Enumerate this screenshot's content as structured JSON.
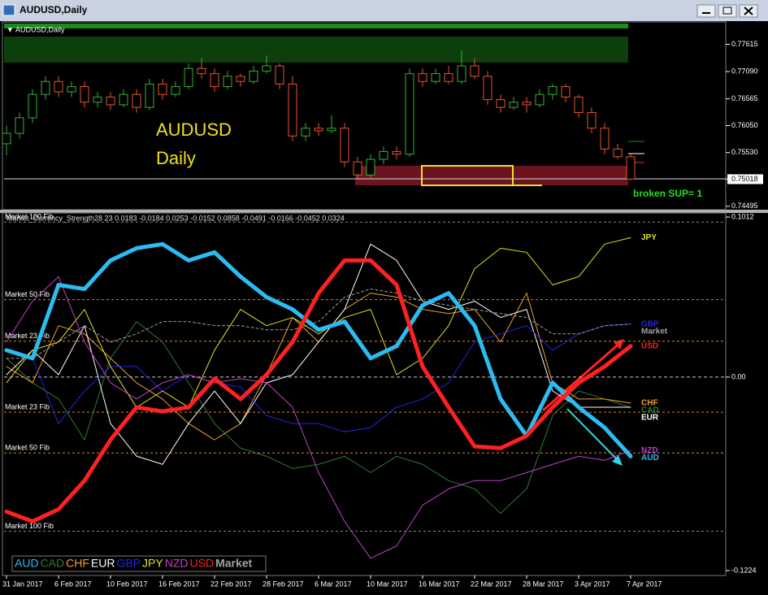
{
  "window": {
    "title": "AUDUSD,Daily"
  },
  "chart_data": [
    {
      "type": "candlestick",
      "title": "AUDUSD,Daily",
      "annotations": [
        "AUDUSD",
        "Daily",
        "broken SUP= 1"
      ],
      "up_color": "#33b233",
      "down_color": "#e8552b",
      "open": [
        0.757,
        0.759,
        0.762,
        0.7665,
        0.769,
        0.767,
        0.768,
        0.765,
        0.766,
        0.7645,
        0.7665,
        0.764,
        0.7685,
        0.7665,
        0.768,
        0.7715,
        0.7705,
        0.768,
        0.77,
        0.769,
        0.771,
        0.772,
        0.7685,
        0.7585,
        0.76,
        0.7595,
        0.76,
        0.7535,
        0.751,
        0.754,
        0.7555,
        0.755,
        0.7705,
        0.769,
        0.7705,
        0.769,
        0.772,
        0.77,
        0.7655,
        0.764,
        0.765,
        0.7645,
        0.7665,
        0.768,
        0.766,
        0.763,
        0.76,
        0.756,
        0.7545
      ],
      "high": [
        0.7605,
        0.763,
        0.7675,
        0.77,
        0.77,
        0.769,
        0.769,
        0.767,
        0.767,
        0.7675,
        0.7675,
        0.7695,
        0.7695,
        0.769,
        0.7725,
        0.7735,
        0.7715,
        0.771,
        0.7705,
        0.772,
        0.774,
        0.7725,
        0.77,
        0.761,
        0.761,
        0.7625,
        0.761,
        0.7545,
        0.755,
        0.7565,
        0.7565,
        0.7715,
        0.7715,
        0.7715,
        0.772,
        0.775,
        0.7735,
        0.771,
        0.7665,
        0.766,
        0.766,
        0.7675,
        0.7685,
        0.7685,
        0.7665,
        0.764,
        0.761,
        0.757,
        0.755
      ],
      "low": [
        0.7548,
        0.758,
        0.761,
        0.7655,
        0.766,
        0.766,
        0.764,
        0.764,
        0.7635,
        0.764,
        0.763,
        0.7635,
        0.7655,
        0.766,
        0.7675,
        0.7695,
        0.767,
        0.7675,
        0.768,
        0.7685,
        0.7705,
        0.7675,
        0.7575,
        0.7575,
        0.7585,
        0.759,
        0.7525,
        0.75,
        0.7505,
        0.753,
        0.754,
        0.7545,
        0.768,
        0.7685,
        0.7685,
        0.7685,
        0.7695,
        0.7645,
        0.763,
        0.7635,
        0.763,
        0.764,
        0.7655,
        0.765,
        0.762,
        0.759,
        0.755,
        0.754,
        0.75
      ],
      "close": [
        0.759,
        0.762,
        0.7665,
        0.769,
        0.767,
        0.768,
        0.765,
        0.766,
        0.7645,
        0.7665,
        0.764,
        0.7685,
        0.7665,
        0.768,
        0.7715,
        0.7705,
        0.768,
        0.77,
        0.769,
        0.771,
        0.772,
        0.7685,
        0.7585,
        0.76,
        0.7595,
        0.76,
        0.7535,
        0.751,
        0.754,
        0.7555,
        0.755,
        0.7705,
        0.769,
        0.7705,
        0.769,
        0.772,
        0.77,
        0.7655,
        0.764,
        0.765,
        0.7645,
        0.7665,
        0.768,
        0.766,
        0.763,
        0.76,
        0.756,
        0.7545,
        0.7502
      ],
      "ylim": [
        0.7443,
        0.7803
      ],
      "yticks": [
        0.77615,
        {
          "value": 0.7709,
          "label": "0.77090"
        },
        0.76565,
        {
          "value": 0.7605,
          "label": "0.76050"
        },
        {
          "value": 0.7553,
          "label": "0.75530"
        },
        0.75018,
        0.74495
      ]
    },
    {
      "type": "line",
      "title": "Market_Currency_Strength28 23 0.0183 -0.0184 0.0253 -0.0152 0.0858 -0.0491 -0.0166 -0.0452 0.0324",
      "categories": [
        "31 Jan 2017",
        null,
        "6 Feb 2017",
        null,
        "10 Feb 2017",
        null,
        "16 Feb 2017",
        null,
        "22 Feb 2017",
        null,
        "28 Feb 2017",
        null,
        "6 Mar 2017",
        null,
        "10 Mar 2017",
        null,
        "16 Mar 2017",
        null,
        "22 Mar 2017",
        null,
        "28 Mar 2017",
        null,
        "3 Apr 2017",
        null,
        "7 Apr 2017"
      ],
      "ylim": [
        -0.1255,
        0.1038
      ],
      "yticks": [
        0.1012,
        {
          "value": 0,
          "label": "0.00"
        },
        -0.1224
      ],
      "levels": [
        {
          "value": 0.098,
          "label": "Market 100 Fib",
          "color": "#888888"
        },
        {
          "value": 0.049,
          "label": "Market 50 Fib",
          "color": "#d98a1c"
        },
        {
          "value": 0.0227,
          "label": "Market 23 Fib",
          "color": "#d98a1c"
        },
        {
          "value": -0.0222,
          "label": "Market 23 Fib",
          "color": "#d98a1c"
        },
        {
          "value": -0.048,
          "label": "Market 50 Fib",
          "color": "#d98a1c"
        },
        {
          "value": -0.0975,
          "label": "Market 100 Fib",
          "color": "#888888"
        }
      ],
      "series": [
        {
          "name": "AUD",
          "color": "#2cbcf2",
          "line_width": 5,
          "values": [
            0.017,
            0.0119,
            0.0583,
            0.0557,
            0.0738,
            0.0815,
            0.0841,
            0.0738,
            0.0789,
            0.0635,
            0.0506,
            0.0428,
            0.0299,
            0.0351,
            0.0119,
            0.0196,
            0.0454,
            0.0531,
            0.0325,
            -0.0139,
            -0.0372,
            -0.0036,
            -0.0191,
            -0.032,
            -0.0501
          ]
        },
        {
          "name": "CAD",
          "color": "#2f7a2f",
          "line_width": 1,
          "values": [
            0.0119,
            -0.0036,
            -0.0139,
            -0.0397,
            0.0119,
            0.0351,
            0.0222,
            -0.0036,
            -0.0294,
            -0.0449,
            -0.0501,
            -0.0578,
            -0.0552,
            -0.0501,
            -0.0604,
            -0.0501,
            -0.0552,
            -0.0655,
            -0.0707,
            -0.0862,
            -0.0707,
            -0.0243,
            -0.0088,
            -0.0139,
            -0.0191
          ]
        },
        {
          "name": "CHF",
          "color": "#f0a030",
          "line_width": 1,
          "values": [
            0.0067,
            -0.0036,
            0.0325,
            0.0273,
            0.0119,
            -0.0036,
            -0.0139,
            -0.0294,
            -0.0397,
            -0.0294,
            0.0015,
            0.0377,
            0.0222,
            0.0428,
            0.0531,
            0.0506,
            0.0428,
            0.0402,
            0.0428,
            0.0222,
            0.0531,
            -0.0036,
            -0.0139,
            -0.0139,
            -0.0165
          ]
        },
        {
          "name": "EUR",
          "color": "#ffffff",
          "line_width": 1,
          "values": [
            0.0015,
            0.017,
            0.0015,
            0.0325,
            -0.0294,
            -0.05,
            -0.0552,
            -0.0294,
            -0.0088,
            -0.0294,
            -0.0036,
            0.0015,
            0.0222,
            0.0428,
            0.0841,
            0.0738,
            0.048,
            0.0428,
            0.048,
            0.0377,
            0.0428,
            -0.0088,
            -0.0191,
            -0.0191,
            -0.0191
          ]
        },
        {
          "name": "GBP",
          "color": "#2424e6",
          "line_width": 1,
          "values": [
            0.017,
            0.0119,
            -0.0294,
            -0.0088,
            0.0067,
            0.0067,
            -0.0088,
            0.0015,
            -0.0036,
            -0.0062,
            -0.0243,
            -0.0294,
            -0.0294,
            -0.0346,
            -0.032,
            -0.0191,
            -0.0139,
            -0.0036,
            0.0222,
            0.0273,
            0.0325,
            0.017,
            0.0273,
            0.0325,
            0.0335
          ]
        },
        {
          "name": "JPY",
          "color": "#e8e020",
          "line_width": 1,
          "values": [
            -0.0036,
            0.017,
            0.0222,
            0.0428,
            0.0067,
            -0.0191,
            -0.0088,
            -0.0191,
            0.017,
            0.0428,
            0.0325,
            0.0377,
            0.0273,
            0.0377,
            0.0428,
            0.0015,
            0.0119,
            0.0325,
            0.0686,
            0.0815,
            0.0789,
            0.0583,
            0.0635,
            0.0841,
            0.0882
          ]
        },
        {
          "name": "NZD",
          "color": "#c040c8",
          "line_width": 1,
          "values": [
            0.0222,
            0.048,
            0.0635,
            0.0222,
            -0.0036,
            -0.0139,
            -0.0036,
            0.0015,
            -0.0036,
            -0.001,
            -0.0036,
            -0.0191,
            -0.0604,
            -0.0913,
            -0.1146,
            -0.1068,
            -0.081,
            -0.0707,
            -0.0655,
            -0.0655,
            -0.0604,
            -0.0552,
            -0.0501,
            -0.0526,
            -0.0464
          ]
        },
        {
          "name": "USD",
          "color": "#ff2020",
          "line_width": 5,
          "values": [
            -0.0851,
            -0.0913,
            -0.0836,
            -0.0655,
            -0.0397,
            -0.0191,
            -0.0217,
            -0.0191,
            -0.001,
            -0.0139,
            0.0015,
            0.0222,
            0.0531,
            0.0738,
            0.0738,
            0.0583,
            0.0067,
            -0.0191,
            -0.0439,
            -0.0449,
            -0.0372,
            -0.0191,
            -0.0036,
            0.0067,
            0.0196
          ]
        },
        {
          "name": "Market",
          "color": "#a0a0a0",
          "line_width": 1,
          "dashed": true,
          "values": [
            0.0119,
            0.0119,
            0.0222,
            0.0325,
            0.0222,
            0.0273,
            0.0351,
            0.0351,
            0.0325,
            0.0325,
            0.0299,
            0.0299,
            0.0351,
            0.0506,
            0.0557,
            0.0531,
            0.048,
            0.0454,
            0.0428,
            0.0402,
            0.0377,
            0.0273,
            0.0273,
            0.0325,
            0.0335
          ]
        }
      ]
    }
  ]
}
